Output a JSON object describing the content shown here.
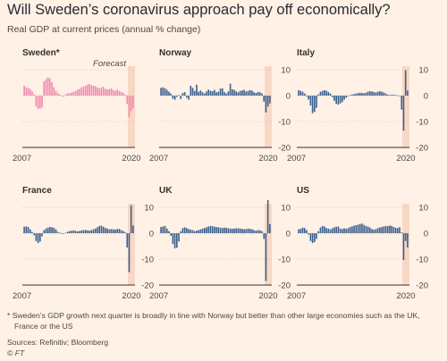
{
  "title": "Will Sweden’s coronavirus approach pay off economically?",
  "subtitle": "Real GDP at current prices (annual % change)",
  "note_line1": "* Sweden’s GDP growth next quarter is broadly in line with Norway but better than other large economies such as the UK,",
  "note_line2": "France or the US",
  "sources": "Sources: Refinitiv; Bloomberg",
  "copyright": "© FT",
  "colors": {
    "sweden": "#f08bb0",
    "others": "#3a5e8c",
    "forecast_band": "#f8d8c4",
    "grid": "#cbbcaf",
    "axis": "#33302e"
  },
  "chart_data": [
    {
      "type": "bar",
      "panel": "Sweden*",
      "x_start": "2007",
      "x_end": "2020",
      "ylim": [
        -20,
        10
      ],
      "yticks": [],
      "annotation": "Forecast",
      "highlight": true,
      "values": [
        3.8,
        3.2,
        2.9,
        2.6,
        1.6,
        0.5,
        -4.2,
        -5.1,
        -5.0,
        -4.6,
        5.5,
        6.3,
        7.1,
        6.6,
        5.2,
        3.2,
        1.8,
        0.9,
        0.4,
        -0.2,
        -0.4,
        0.5,
        1.0,
        0.8,
        1.2,
        1.5,
        1.8,
        2.3,
        2.6,
        3.2,
        3.5,
        3.8,
        4.2,
        4.5,
        4.0,
        3.8,
        3.6,
        3.2,
        2.8,
        3.2,
        3.4,
        2.6,
        2.4,
        2.5,
        2.8,
        2.1,
        1.9,
        2.3,
        1.8,
        1.5,
        1.1,
        0.4,
        -3.2,
        -8.2,
        -6.0,
        -4.8
      ]
    },
    {
      "type": "bar",
      "panel": "Norway",
      "x_start": "2007",
      "x_end": "2020",
      "ylim": [
        -20,
        10
      ],
      "yticks": [
        10,
        0,
        -10,
        -20
      ],
      "highlight": false,
      "values": [
        3.0,
        3.2,
        2.8,
        2.2,
        1.5,
        0.8,
        -1.2,
        -1.6,
        -0.5,
        0.2,
        -1.3,
        1.0,
        1.3,
        -0.8,
        -1.6,
        3.8,
        3.0,
        1.8,
        4.2,
        1.5,
        2.0,
        1.3,
        0.8,
        1.6,
        2.3,
        1.9,
        1.7,
        2.2,
        1.3,
        1.5,
        2.7,
        2.8,
        1.4,
        0.8,
        1.6,
        4.6,
        2.4,
        2.2,
        1.6,
        1.3,
        1.8,
        2.0,
        2.2,
        1.6,
        1.8,
        2.1,
        1.9,
        1.3,
        1.0,
        1.4,
        1.3,
        0.8,
        -2.3,
        -6.5,
        -4.2,
        -3.0
      ]
    },
    {
      "type": "bar",
      "panel": "Italy",
      "x_start": "2007",
      "x_end": "2020",
      "ylim": [
        -20,
        10
      ],
      "yticks": [
        10,
        0,
        -10,
        -20
      ],
      "highlight": false,
      "values": [
        2.1,
        1.8,
        1.5,
        0.8,
        -0.3,
        -1.5,
        -3.8,
        -6.8,
        -6.3,
        -4.7,
        0.5,
        1.5,
        1.8,
        2.1,
        1.9,
        1.4,
        0.8,
        -0.6,
        -2.0,
        -3.2,
        -3.5,
        -3.0,
        -2.5,
        -1.6,
        -0.8,
        -0.2,
        0.2,
        0.4,
        0.6,
        0.8,
        1.0,
        1.1,
        1.0,
        0.9,
        1.1,
        1.5,
        1.7,
        1.6,
        1.4,
        1.2,
        1.5,
        1.7,
        1.5,
        1.2,
        0.8,
        0.4,
        0.2,
        0.3,
        0.4,
        0.2,
        0.1,
        0.0,
        -5.4,
        -13.5,
        9.8,
        2.0
      ]
    },
    {
      "type": "bar",
      "panel": "France",
      "x_start": "2007",
      "x_end": "2020",
      "ylim": [
        -20,
        10
      ],
      "yticks": [
        10,
        0,
        -10,
        -20
      ],
      "highlight": false,
      "values": [
        2.5,
        2.6,
        2.4,
        1.5,
        0.5,
        -0.8,
        -3.0,
        -3.8,
        -3.2,
        -1.2,
        1.2,
        1.8,
        2.2,
        2.4,
        2.3,
        2.1,
        1.5,
        0.5,
        0.2,
        0.0,
        -0.2,
        0.2,
        0.6,
        0.8,
        1.0,
        1.1,
        0.9,
        0.7,
        0.9,
        1.1,
        1.2,
        1.3,
        1.1,
        1.0,
        1.2,
        1.5,
        1.8,
        2.3,
        2.8,
        2.9,
        2.5,
        2.0,
        1.8,
        1.5,
        1.6,
        1.5,
        1.4,
        1.6,
        1.7,
        1.2,
        0.8,
        0.4,
        -5.5,
        -15.0,
        10.8,
        3.0
      ]
    },
    {
      "type": "bar",
      "panel": "UK",
      "x_start": "2007",
      "x_end": "2020",
      "ylim": [
        -20,
        10
      ],
      "yticks": [
        10,
        0,
        -10,
        -20
      ],
      "highlight": false,
      "values": [
        2.4,
        2.6,
        2.8,
        1.8,
        0.8,
        -1.0,
        -4.2,
        -5.8,
        -5.6,
        -3.2,
        0.8,
        2.0,
        2.3,
        2.0,
        1.6,
        1.4,
        1.2,
        0.8,
        1.0,
        1.2,
        1.5,
        1.8,
        2.0,
        2.3,
        2.6,
        2.8,
        2.7,
        2.5,
        2.4,
        2.3,
        2.1,
        2.0,
        2.2,
        2.1,
        1.9,
        1.8,
        1.7,
        1.8,
        1.9,
        1.9,
        1.8,
        1.7,
        1.5,
        1.6,
        1.8,
        1.7,
        1.5,
        1.2,
        1.0,
        1.2,
        1.1,
        0.8,
        -2.2,
        -18.4,
        12.8,
        3.5
      ]
    },
    {
      "type": "bar",
      "panel": "US",
      "x_start": "2007",
      "x_end": "2020",
      "ylim": [
        -20,
        10
      ],
      "yticks": [
        10,
        0,
        -10,
        -20
      ],
      "highlight": false,
      "values": [
        1.5,
        1.7,
        2.2,
        2.0,
        1.2,
        -0.5,
        -3.0,
        -3.8,
        -3.4,
        -2.2,
        0.8,
        2.2,
        2.8,
        2.6,
        2.0,
        1.8,
        1.5,
        1.9,
        2.3,
        2.5,
        2.6,
        1.8,
        1.6,
        1.9,
        1.7,
        2.0,
        2.4,
        2.6,
        2.9,
        3.1,
        3.3,
        3.6,
        3.7,
        3.2,
        2.8,
        2.6,
        2.2,
        1.6,
        1.4,
        1.6,
        2.0,
        2.2,
        2.4,
        2.6,
        2.8,
        2.7,
        3.0,
        2.8,
        2.4,
        2.1,
        2.0,
        2.3,
        0.3,
        -10.3,
        -3.0,
        -5.5
      ]
    }
  ]
}
